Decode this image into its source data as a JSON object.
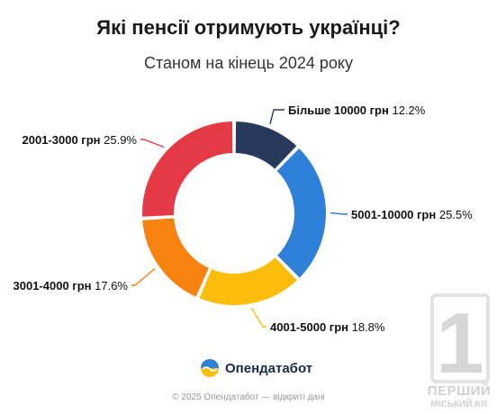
{
  "title": "Які пенсії отримують українці?",
  "subtitle": "Станом на кінець 2024 року",
  "chart_data": {
    "type": "pie",
    "donut": true,
    "title": "Які пенсії отримують українці?",
    "subtitle": "Станом на кінець 2024 року",
    "legend": "none",
    "slices": [
      {
        "category": "Більше 10000 грн",
        "value": 12.2,
        "label": "12.2%",
        "color": "#283a5c"
      },
      {
        "category": "5001-10000 грн",
        "value": 25.5,
        "label": "25.5%",
        "color": "#2f80d9"
      },
      {
        "category": "4001-5000 грн",
        "value": 18.8,
        "label": "18.8%",
        "color": "#fbbd0a"
      },
      {
        "category": "3001-4000 грн",
        "value": 17.6,
        "label": "17.6%",
        "color": "#f7820f"
      },
      {
        "category": "2001-3000 грн",
        "value": 25.9,
        "label": "25.9%",
        "color": "#e63946"
      }
    ]
  },
  "brand": {
    "name": "Опендатабот",
    "icon": "opendatabot-logo-icon"
  },
  "footer": "© 2025 Опендатабот — відкриті дані",
  "watermark": {
    "digit": "1",
    "line1": "ПЕРШИЙ",
    "line2": "МІСЬКИЙ.KR"
  }
}
